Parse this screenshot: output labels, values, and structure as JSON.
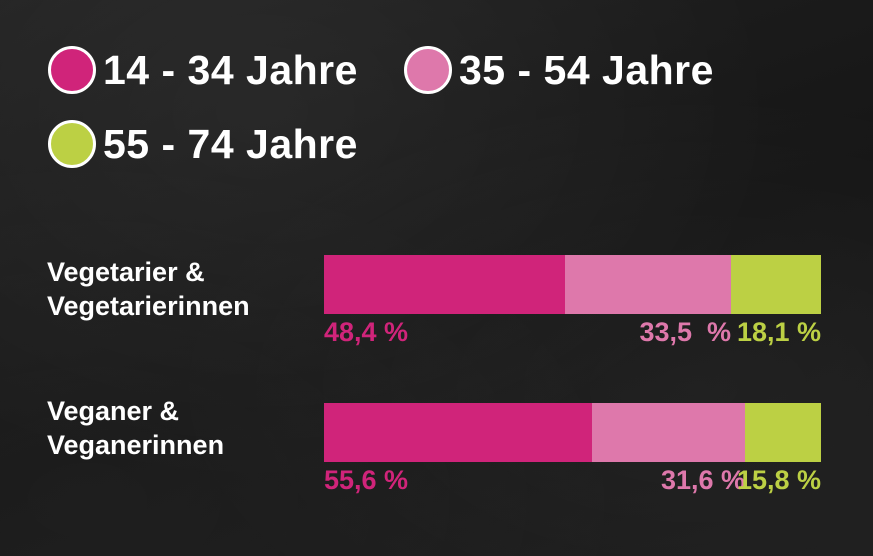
{
  "colors": {
    "group_14_34": "#d0247a",
    "group_35_54": "#de78ab",
    "group_55_74": "#bcd044",
    "label_text": "#ffffff"
  },
  "legend": [
    {
      "label": "14 - 34 Jahre",
      "color": "#d0247a"
    },
    {
      "label": "35 - 54 Jahre",
      "color": "#de78ab"
    },
    {
      "label": "55 - 74 Jahre",
      "color": "#bcd044"
    }
  ],
  "chart_data": {
    "type": "bar",
    "orientation": "horizontal",
    "stacked": true,
    "normalized_to_percent": true,
    "categories": [
      "Vegetarier & Vegetarierinnen",
      "Veganer & Veganerinnen"
    ],
    "category_label_lines": [
      [
        "Vegetarier &",
        "Vegetarierinnen"
      ],
      [
        "Veganer &",
        "Veganerinnen"
      ]
    ],
    "series": [
      {
        "name": "14 - 34 Jahre",
        "color": "#d0247a",
        "values": [
          48.4,
          55.6
        ],
        "labels": [
          "48,4 %",
          "55,6 %"
        ]
      },
      {
        "name": "35 - 54 Jahre",
        "color": "#de78ab",
        "values": [
          33.5,
          31.6
        ],
        "labels": [
          "33,5  %",
          "31,6 %"
        ]
      },
      {
        "name": "55 - 74 Jahre",
        "color": "#bcd044",
        "values": [
          18.1,
          15.8
        ],
        "labels": [
          "18,1 %",
          "15,8 %"
        ]
      }
    ],
    "legend_position": "top-left",
    "grid": false
  }
}
